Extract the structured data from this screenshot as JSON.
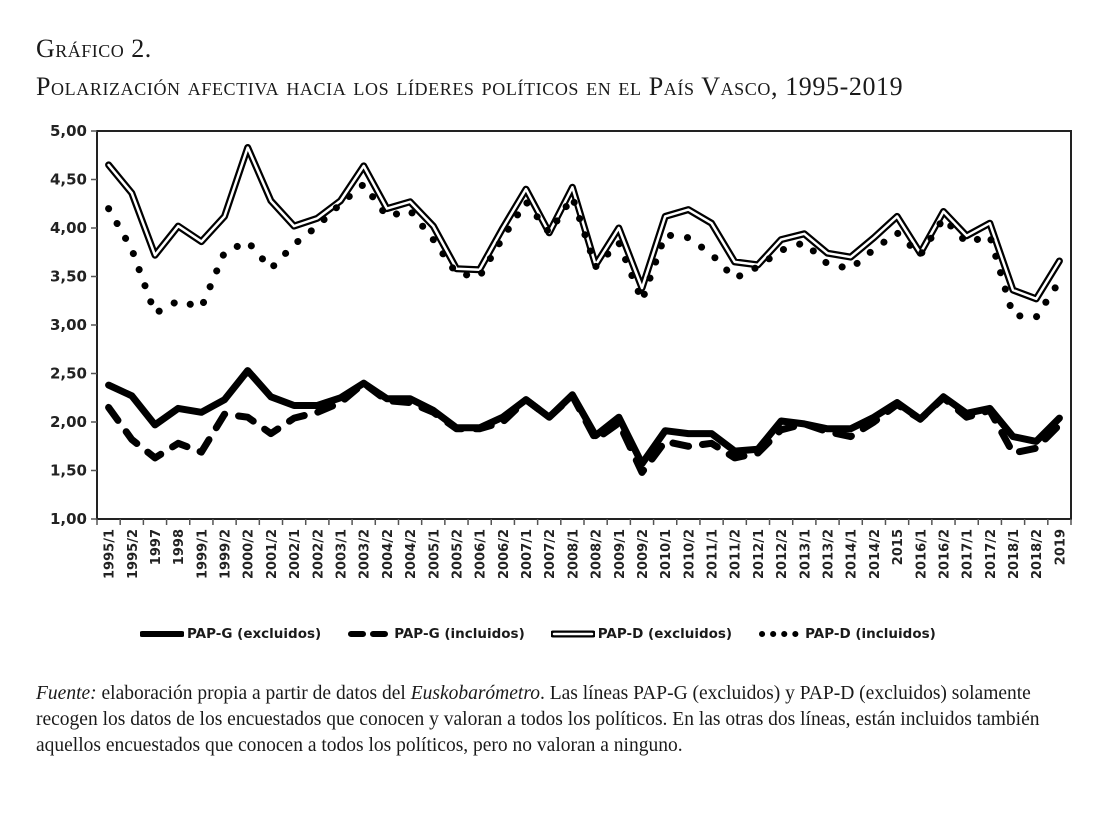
{
  "figure": {
    "label": "Gráfico 2.",
    "title": "Polarización afectiva hacia los líderes políticos en el País Vasco, 1995-2019"
  },
  "caption": {
    "source_label": "Fuente:",
    "text_1": " elaboración propia a partir de datos del ",
    "source_name": "Euskobarómetro",
    "text_2": ". Las líneas PAP-G (excluidos) y PAP-D (excluidos) solamente recogen los datos de los encuestados que conocen y valoran a todos los políticos. En las otras dos líneas, están incluidos también aquellos encuestados que conocen a todos los políticos, pero no valoran a ninguno."
  },
  "chart_data": {
    "type": "line",
    "title": "Polarización afectiva hacia los líderes políticos en el País Vasco, 1995-2019",
    "xlabel": "",
    "ylabel": "",
    "ylim": [
      1.0,
      5.0
    ],
    "yticks": [
      "1,00",
      "1,50",
      "2,00",
      "2,50",
      "3,00",
      "3,50",
      "4,00",
      "4,50",
      "5,00"
    ],
    "ytick_values": [
      1.0,
      1.5,
      2.0,
      2.5,
      3.0,
      3.5,
      4.0,
      4.5,
      5.0
    ],
    "grid": false,
    "legend_position": "bottom",
    "categories": [
      "1995/1",
      "1995/2",
      "1997",
      "1998",
      "1999/1",
      "1999/2",
      "2000/2",
      "2001/2",
      "2002/1",
      "2002/2",
      "2003/1",
      "2003/2",
      "2004/2",
      "2004/2",
      "2005/1",
      "2005/2",
      "2006/1",
      "2006/2",
      "2007/1",
      "2007/2",
      "2008/1",
      "2008/2",
      "2009/1",
      "2009/2",
      "2010/1",
      "2010/2",
      "2011/1",
      "2011/2",
      "2012/1",
      "2012/2",
      "2013/1",
      "2013/2",
      "2014/1",
      "2014/2",
      "2015",
      "2016/1",
      "2016/2",
      "2017/1",
      "2017/2",
      "2018/1",
      "2018/2",
      "2019"
    ],
    "series": [
      {
        "name": "PAP-G (excluidos)",
        "style": "solid",
        "values": [
          2.38,
          2.27,
          1.97,
          2.14,
          2.1,
          2.23,
          2.53,
          2.26,
          2.17,
          2.17,
          2.25,
          2.4,
          2.24,
          2.24,
          2.12,
          1.94,
          1.94,
          2.05,
          2.23,
          2.05,
          2.28,
          1.86,
          2.05,
          1.57,
          1.91,
          1.88,
          1.88,
          1.7,
          1.72,
          2.01,
          1.98,
          1.93,
          1.93,
          2.05,
          2.2,
          2.03,
          2.26,
          2.09,
          2.14,
          1.85,
          1.8,
          2.04
        ]
      },
      {
        "name": "PAP-G (incluidos)",
        "style": "dashed",
        "values": [
          2.15,
          1.82,
          1.63,
          1.78,
          1.69,
          2.08,
          2.05,
          1.88,
          2.04,
          2.1,
          2.2,
          2.4,
          2.22,
          2.2,
          2.1,
          1.93,
          1.93,
          2.0,
          2.23,
          2.05,
          2.27,
          1.82,
          1.99,
          1.48,
          1.8,
          1.75,
          1.78,
          1.63,
          1.68,
          1.92,
          1.98,
          1.9,
          1.85,
          2.0,
          2.18,
          2.03,
          2.25,
          2.05,
          2.12,
          1.68,
          1.73,
          1.97
        ]
      },
      {
        "name": "PAP-D (excluidos)",
        "style": "double",
        "values": [
          4.65,
          4.36,
          3.72,
          4.02,
          3.86,
          4.12,
          4.83,
          4.28,
          4.02,
          4.1,
          4.28,
          4.64,
          4.2,
          4.27,
          4.02,
          3.58,
          3.57,
          4.0,
          4.4,
          3.95,
          4.42,
          3.62,
          4.0,
          3.38,
          4.12,
          4.19,
          4.05,
          3.65,
          3.62,
          3.88,
          3.94,
          3.74,
          3.7,
          3.9,
          4.12,
          3.74,
          4.17,
          3.92,
          4.05,
          3.36,
          3.27,
          3.66
        ]
      },
      {
        "name": "PAP-D (incluidos)",
        "style": "dotted",
        "values": [
          4.2,
          3.78,
          3.12,
          3.25,
          3.18,
          3.75,
          3.86,
          3.58,
          3.83,
          4.02,
          4.25,
          4.45,
          4.12,
          4.18,
          3.88,
          3.53,
          3.5,
          3.9,
          4.27,
          3.95,
          4.32,
          3.6,
          3.85,
          3.25,
          3.93,
          3.9,
          3.73,
          3.48,
          3.6,
          3.77,
          3.85,
          3.63,
          3.58,
          3.78,
          3.95,
          3.72,
          4.1,
          3.85,
          3.92,
          3.1,
          3.08,
          3.45
        ]
      }
    ]
  },
  "legend": [
    {
      "label": "PAP-G (excluidos)",
      "style": "solid"
    },
    {
      "label": "PAP-G (incluidos)",
      "style": "dashed"
    },
    {
      "label": "PAP-D (excluidos)",
      "style": "double"
    },
    {
      "label": "PAP-D (incluidos)",
      "style": "dotted"
    }
  ]
}
